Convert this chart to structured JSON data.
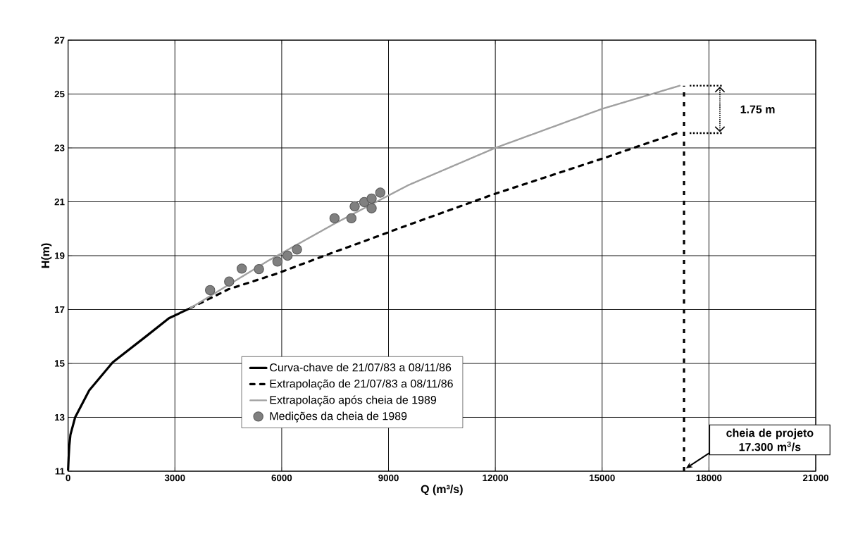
{
  "chart_data": {
    "type": "line",
    "xlabel": "Q (m³/s)",
    "ylabel": "H(m)",
    "xlim": [
      0,
      21000
    ],
    "xticks": [
      0,
      3000,
      6000,
      9000,
      12000,
      15000,
      18000,
      21000
    ],
    "ylim": [
      11,
      27
    ],
    "yticks": [
      11,
      13,
      15,
      17,
      19,
      21,
      23,
      25,
      27
    ],
    "grid": true,
    "legend": "bottom",
    "series": [
      {
        "name": "Curva-chave de 21/07/83 a 08/11/86",
        "color": "#000000",
        "line_style": "solid",
        "x": [
          0,
          15,
          35,
          65,
          198,
          593,
          1252,
          2175,
          2834,
          3428
        ],
        "values": [
          11.05,
          11.5,
          11.95,
          12.35,
          13.0,
          14.0,
          15.04,
          15.99,
          16.68,
          17.05
        ]
      },
      {
        "name": "Extrapolação de 21/07/83 a 08/11/86",
        "color": "#000000",
        "line_style": "dashed",
        "x": [
          3428,
          4500,
          5855,
          7285,
          8717,
          9428,
          12000,
          15000,
          17100
        ],
        "values": [
          17.05,
          17.75,
          18.33,
          19.04,
          19.73,
          20.08,
          21.3,
          22.6,
          23.55
        ]
      },
      {
        "name": "Extrapolação após cheia de 1989",
        "color": "#a0a0a0",
        "line_style": "dotted",
        "x": [
          3428,
          5617,
          7500,
          9560,
          12000,
          15000,
          17180
        ],
        "values": [
          17.05,
          18.81,
          20.2,
          21.62,
          23.0,
          24.45,
          25.31
        ]
      },
      {
        "name": "Medições da cheia de 1989",
        "type": "scatter",
        "color": "#808080",
        "marker": "circle",
        "x": [
          3988,
          4524,
          4878,
          5361,
          5881,
          6164,
          6429,
          7483,
          7958,
          8050,
          8319,
          8525,
          8525,
          8769
        ],
        "values": [
          17.72,
          18.04,
          18.52,
          18.5,
          18.78,
          19.0,
          19.23,
          20.39,
          20.39,
          20.83,
          20.99,
          21.12,
          20.76,
          21.34
        ]
      }
    ],
    "ref_lines": [
      {
        "axis": "x",
        "value": 17300,
        "color": "#000000",
        "line_style": "dashed"
      }
    ],
    "annotations": [
      "1.75 m",
      "cheia de projeto 17.300 m$^{3}$/s"
    ]
  }
}
